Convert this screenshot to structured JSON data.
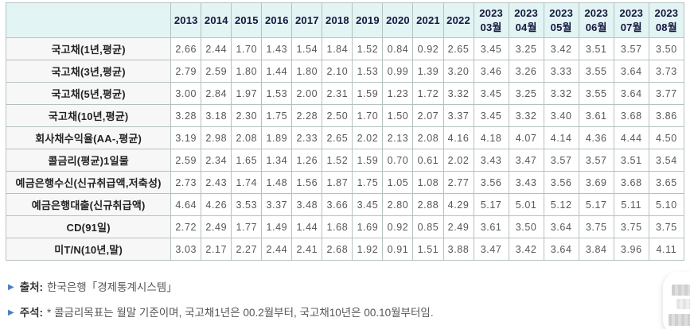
{
  "table": {
    "columns": [
      "2013",
      "2014",
      "2015",
      "2016",
      "2017",
      "2018",
      "2019",
      "2020",
      "2021",
      "2022",
      "2023\n03월",
      "2023\n04월",
      "2023\n05월",
      "2023\n06월",
      "2023\n07월",
      "2023\n08월"
    ],
    "rows": [
      {
        "label": "국고채(1년,평균)",
        "values": [
          "2.66",
          "2.44",
          "1.70",
          "1.43",
          "1.54",
          "1.84",
          "1.52",
          "0.84",
          "0.92",
          "2.65",
          "3.45",
          "3.25",
          "3.42",
          "3.51",
          "3.57",
          "3.50"
        ]
      },
      {
        "label": "국고채(3년,평균)",
        "values": [
          "2.79",
          "2.59",
          "1.80",
          "1.44",
          "1.80",
          "2.10",
          "1.53",
          "0.99",
          "1.39",
          "3.20",
          "3.46",
          "3.26",
          "3.33",
          "3.55",
          "3.64",
          "3.73"
        ]
      },
      {
        "label": "국고채(5년,평균)",
        "values": [
          "3.00",
          "2.84",
          "1.97",
          "1.53",
          "2.00",
          "2.31",
          "1.59",
          "1.23",
          "1.72",
          "3.32",
          "3.45",
          "3.25",
          "3.32",
          "3.55",
          "3.64",
          "3.77"
        ]
      },
      {
        "label": "국고채(10년,평균)",
        "values": [
          "3.28",
          "3.18",
          "2.30",
          "1.75",
          "2.28",
          "2.50",
          "1.70",
          "1.50",
          "2.07",
          "3.37",
          "3.45",
          "3.32",
          "3.40",
          "3.61",
          "3.68",
          "3.86"
        ]
      },
      {
        "label": "회사채수익율(AA-,평균)",
        "values": [
          "3.19",
          "2.98",
          "2.08",
          "1.89",
          "2.33",
          "2.65",
          "2.02",
          "2.13",
          "2.08",
          "4.16",
          "4.18",
          "4.07",
          "4.14",
          "4.36",
          "4.44",
          "4.50"
        ]
      },
      {
        "label": "콜금리(평균)1일물",
        "values": [
          "2.59",
          "2.34",
          "1.65",
          "1.34",
          "1.26",
          "1.52",
          "1.59",
          "0.70",
          "0.61",
          "2.02",
          "3.43",
          "3.47",
          "3.57",
          "3.57",
          "3.51",
          "3.54"
        ]
      },
      {
        "label": "예금은행수신(신규취급액,저축성)",
        "values": [
          "2.73",
          "2.43",
          "1.74",
          "1.48",
          "1.56",
          "1.87",
          "1.75",
          "1.05",
          "1.08",
          "2.77",
          "3.56",
          "3.43",
          "3.56",
          "3.69",
          "3.68",
          "3.65"
        ]
      },
      {
        "label": "예금은행대출(신규취급액)",
        "values": [
          "4.64",
          "4.26",
          "3.53",
          "3.37",
          "3.48",
          "3.66",
          "3.45",
          "2.80",
          "2.88",
          "4.29",
          "5.17",
          "5.01",
          "5.12",
          "5.17",
          "5.11",
          "5.10"
        ]
      },
      {
        "label": "CD(91일)",
        "values": [
          "2.72",
          "2.49",
          "1.77",
          "1.49",
          "1.44",
          "1.68",
          "1.69",
          "0.92",
          "0.85",
          "2.49",
          "3.61",
          "3.50",
          "3.64",
          "3.75",
          "3.75",
          "3.75"
        ]
      },
      {
        "label": "미T/N(10년,말)",
        "values": [
          "3.03",
          "2.17",
          "2.27",
          "2.44",
          "2.41",
          "2.68",
          "1.92",
          "0.91",
          "1.51",
          "3.88",
          "3.47",
          "3.42",
          "3.64",
          "3.84",
          "3.96",
          "4.11"
        ]
      }
    ]
  },
  "notes": [
    {
      "bullet": "▶",
      "label": "출처:",
      "text": "한국은행「경제통계시스템」"
    },
    {
      "bullet": "▶",
      "label": "주석:",
      "text": "* 콜금리목표는 월말 기준이며, 국고채1년은 00.2월부터, 국고채10년은 00.10월부터임."
    }
  ],
  "colors": {
    "header_bg": "#e2f5f4",
    "header_text": "#16163f",
    "border": "#b5c1c1",
    "row_label_bg": "#f7f7f7",
    "value_text": "#575757",
    "note_bullet": "#4b7fc9"
  }
}
